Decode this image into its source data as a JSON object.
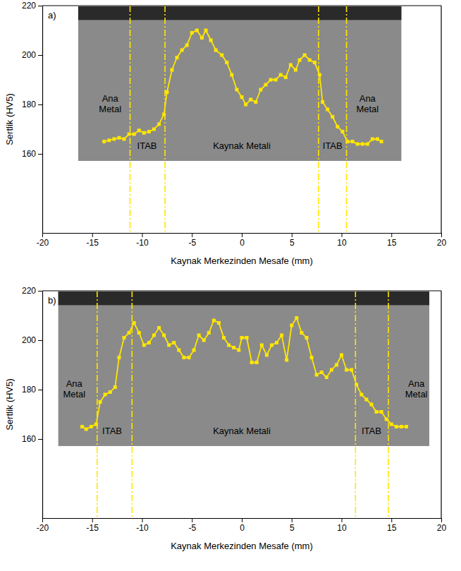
{
  "chart_data": [
    {
      "type": "line",
      "panel_label": "a)",
      "x_label": "Kaynak Merkezinden Mesafe (mm)",
      "y_label": "Sertlik (HV5)",
      "xlim": [
        -20,
        20
      ],
      "xticks": [
        -20,
        -15,
        -10,
        -5,
        0,
        5,
        10,
        15,
        20
      ],
      "ylim": [
        128,
        220
      ],
      "yticks": [
        160,
        180,
        200,
        220
      ],
      "grid": false,
      "series": [
        {
          "type": "line",
          "color": "#ffe600",
          "marker": "square",
          "x": [
            -13.8,
            -13.3,
            -12.8,
            -12.3,
            -11.8,
            -11.3,
            -10.8,
            -10.3,
            -9.8,
            -9.3,
            -8.8,
            -8.3,
            -7.8,
            -7.5,
            -7.0,
            -6.5,
            -6.0,
            -5.5,
            -5.0,
            -4.5,
            -4.0,
            -3.6,
            -3.1,
            -2.6,
            -2.0,
            -1.5,
            -1.0,
            -0.5,
            0.0,
            0.4,
            0.9,
            1.4,
            1.9,
            2.4,
            2.9,
            3.4,
            3.9,
            4.4,
            4.9,
            5.4,
            5.8,
            6.3,
            6.8,
            7.3,
            7.8,
            8.1,
            8.6,
            9.1,
            9.6,
            10.1,
            10.6,
            11.1,
            11.6,
            12.1,
            12.6,
            13.1,
            13.6,
            14.0
          ],
          "values": [
            165,
            165.5,
            166,
            166.5,
            166,
            168,
            168,
            169.5,
            168.5,
            169,
            170,
            172,
            176,
            185,
            194,
            199,
            202,
            204,
            209,
            210,
            207,
            210,
            206,
            202,
            200,
            197,
            192,
            186,
            183,
            180,
            182,
            181,
            186,
            188,
            190,
            190,
            192,
            191,
            196,
            194,
            198,
            200,
            198,
            197,
            192,
            181,
            178,
            175,
            171,
            169,
            165,
            165,
            164,
            164,
            164,
            166,
            166,
            165
          ]
        },
        {
          "type": "vline",
          "color": "#ffe600",
          "line_style": "dashdot",
          "x": [
            -11.2,
            -7.7,
            7.7,
            10.5
          ]
        }
      ],
      "annotations": [
        {
          "text": "Ana Metal",
          "x": -13.2,
          "y": 180
        },
        {
          "text": "ITAB",
          "x": -9.5,
          "y": 163
        },
        {
          "text": "Kaynak Metali",
          "x": 0,
          "y": 163
        },
        {
          "text": "ITAB",
          "x": 9.1,
          "y": 163
        },
        {
          "text": "Ana Metal",
          "x": 12.6,
          "y": 180
        }
      ]
    },
    {
      "type": "line",
      "panel_label": "b)",
      "x_label": "Kaynak Merkezinden Mesafe (mm)",
      "y_label": "Sertlik (HV5)",
      "xlim": [
        -20,
        20
      ],
      "xticks": [
        -20,
        -15,
        -10,
        -5,
        0,
        5,
        10,
        15,
        20
      ],
      "ylim": [
        128,
        220
      ],
      "yticks": [
        160,
        180,
        200,
        220
      ],
      "grid": false,
      "series": [
        {
          "type": "line",
          "color": "#ffe600",
          "marker": "square",
          "x": [
            -16.0,
            -15.6,
            -15.1,
            -14.6,
            -14.2,
            -13.7,
            -13.2,
            -12.7,
            -12.3,
            -11.8,
            -11.3,
            -10.8,
            -10.3,
            -9.8,
            -9.3,
            -8.8,
            -8.3,
            -7.8,
            -7.3,
            -6.8,
            -6.3,
            -5.8,
            -5.3,
            -4.8,
            -4.3,
            -3.8,
            -3.3,
            -2.8,
            -2.3,
            -1.8,
            -1.3,
            -0.8,
            -0.3,
            0.0,
            0.5,
            1.0,
            1.5,
            2.0,
            2.5,
            3.0,
            3.5,
            4.0,
            4.5,
            5.0,
            5.5,
            6.0,
            6.5,
            7.0,
            7.5,
            8.0,
            8.5,
            9.0,
            9.5,
            10.0,
            10.5,
            11.0,
            11.5,
            12.0,
            12.5,
            13.0,
            13.5,
            14.0,
            14.5,
            15.0,
            15.5,
            16.0,
            16.5
          ],
          "values": [
            165,
            164,
            165,
            166,
            175,
            178,
            179,
            181,
            193,
            201,
            203,
            207,
            203,
            198,
            199,
            202,
            205,
            202,
            198,
            199,
            196,
            193,
            193,
            196,
            202,
            200,
            203,
            208,
            207,
            201,
            198,
            197,
            196,
            201,
            201,
            191,
            191,
            198,
            194,
            198,
            199,
            202,
            192,
            206,
            209,
            203,
            201,
            193,
            186,
            187,
            185,
            188,
            190,
            194,
            188,
            188,
            182,
            178,
            176,
            174,
            171,
            171,
            168,
            166,
            165,
            165,
            165
          ]
        },
        {
          "type": "vline",
          "color": "#ffe600",
          "line_style": "dashdot",
          "x": [
            -14.5,
            -11.0,
            11.4,
            14.7
          ]
        }
      ],
      "annotations": [
        {
          "text": "Ana Metal",
          "x": -16.8,
          "y": 180
        },
        {
          "text": "ITAB",
          "x": -13.0,
          "y": 163
        },
        {
          "text": "Kaynak Metali",
          "x": 0,
          "y": 163
        },
        {
          "text": "ITAB",
          "x": 13.0,
          "y": 163
        },
        {
          "text": "Ana Metal",
          "x": 17.5,
          "y": 180
        }
      ]
    }
  ]
}
